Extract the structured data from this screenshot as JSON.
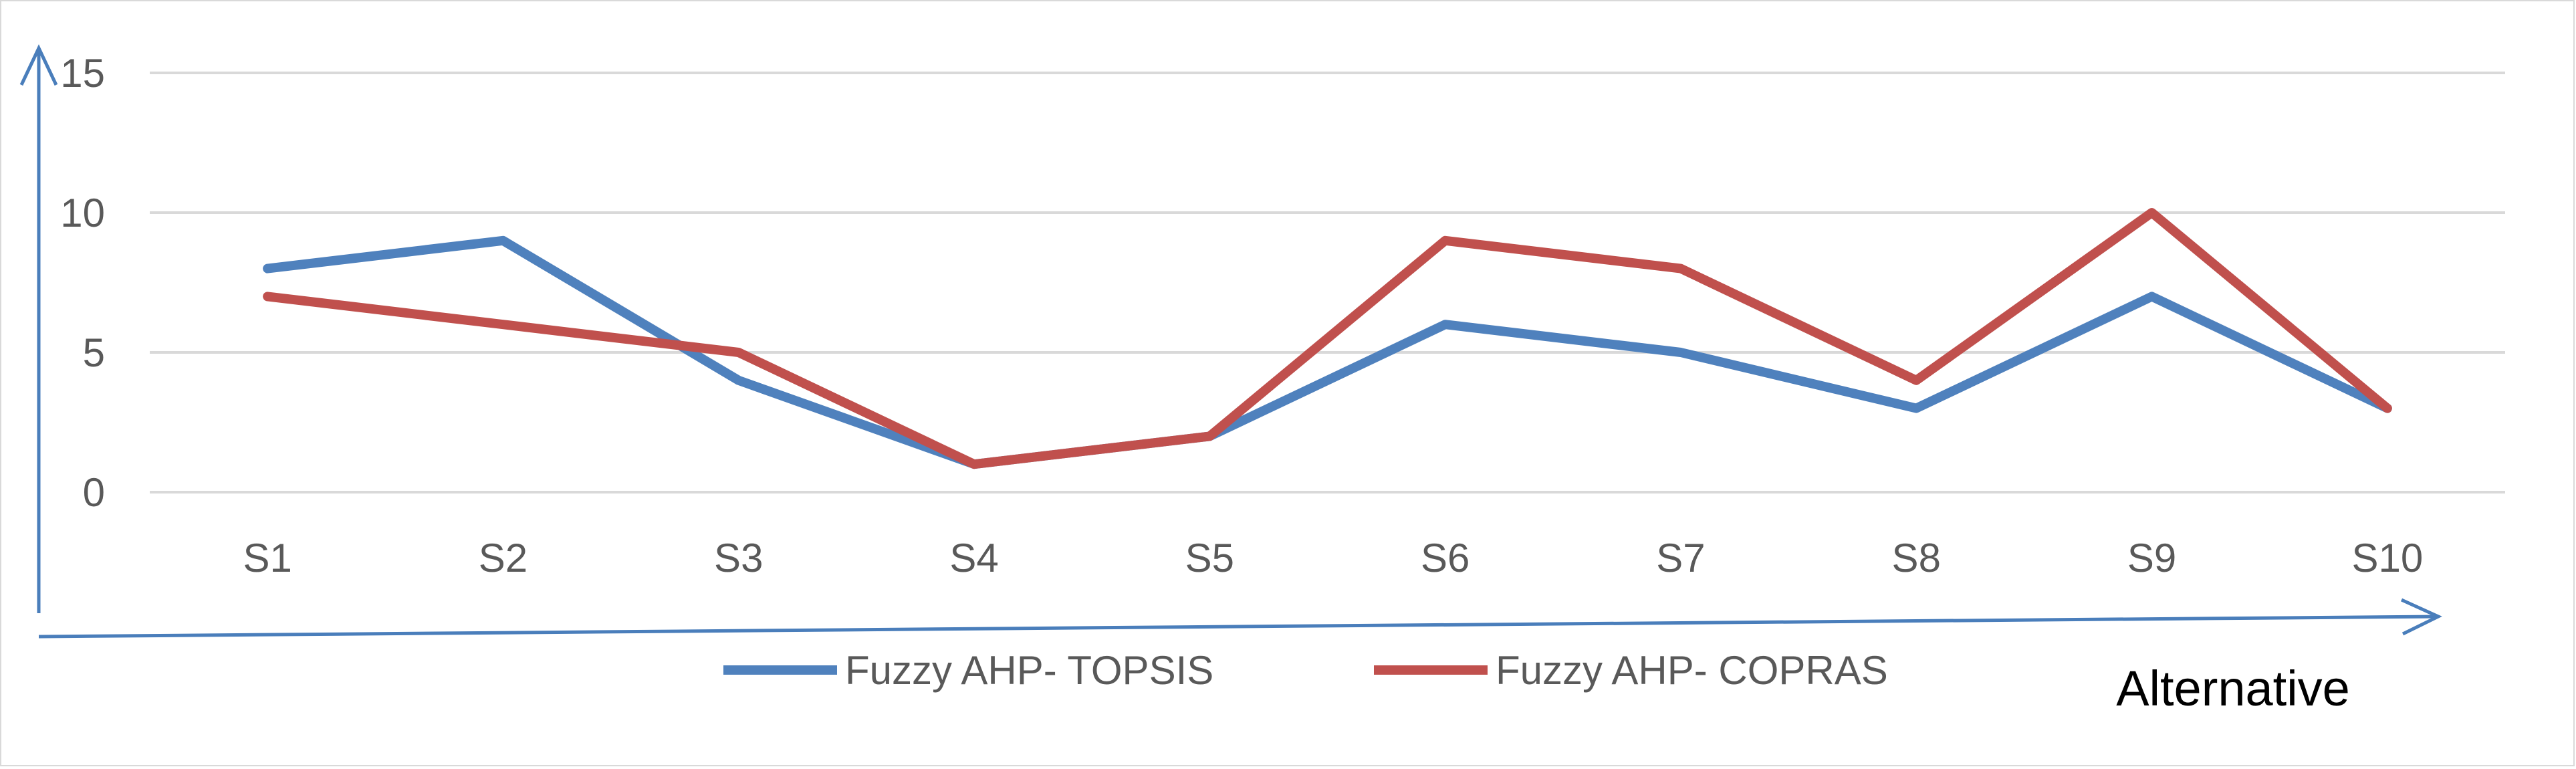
{
  "chart_data": {
    "type": "line",
    "categories": [
      "S1",
      "S2",
      "S3",
      "S4",
      "S5",
      "S6",
      "S7",
      "S8",
      "S9",
      "S10"
    ],
    "series": [
      {
        "name": "Fuzzy AHP- TOPSIS",
        "values": [
          8,
          9,
          4,
          1,
          2,
          6,
          5,
          3,
          7,
          3
        ],
        "color": "#4f81bd"
      },
      {
        "name": "Fuzzy AHP- COPRAS",
        "values": [
          7,
          6,
          5,
          1,
          2,
          9,
          8,
          4,
          10,
          3
        ],
        "color": "#c0504d"
      }
    ],
    "ylim": [
      0,
      15
    ],
    "yticks": [
      "0",
      "5",
      "10",
      "15"
    ],
    "xlabel": "Alternative",
    "ylabel": "",
    "grid": true,
    "legend_position": "bottom",
    "axis_color": "#4a7ebb",
    "grid_color": "#d9d9d9"
  }
}
